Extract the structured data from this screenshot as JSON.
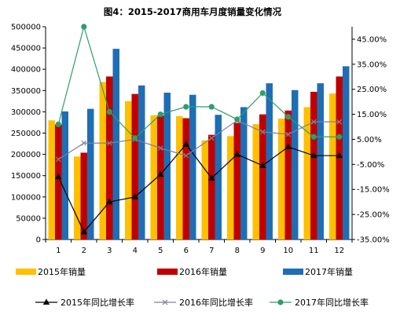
{
  "chart_data": {
    "type": "bar",
    "title": "图4：2015-2017商用车月度销量变化情况",
    "categories": [
      "1",
      "2",
      "3",
      "4",
      "5",
      "6",
      "7",
      "8",
      "9",
      "10",
      "11",
      "12"
    ],
    "series": [
      {
        "name": "2015年销量",
        "kind": "bar",
        "color": "#FFC000",
        "values": [
          280000,
          195000,
          370000,
          325000,
          292000,
          290000,
          233000,
          243000,
          271000,
          284000,
          311000,
          343000
        ]
      },
      {
        "name": "2016年销量",
        "kind": "bar",
        "color": "#C00000",
        "values": [
          270000,
          204000,
          383000,
          342000,
          291000,
          285000,
          246000,
          274000,
          294000,
          303000,
          347000,
          383000
        ]
      },
      {
        "name": "2017年销量",
        "kind": "bar",
        "color": "#1F6EB4",
        "values": [
          301000,
          307000,
          448000,
          362000,
          345000,
          340000,
          293000,
          311000,
          367000,
          351000,
          367000,
          407000
        ]
      },
      {
        "name": "2015年同比增长率",
        "kind": "line",
        "color": "#000000",
        "marker": "triangle",
        "values": [
          -10,
          -32,
          -20,
          -18,
          -9,
          3,
          -10.5,
          -1,
          -5.5,
          2,
          -1.5,
          -1.5
        ]
      },
      {
        "name": "2016年同比增长率",
        "kind": "line",
        "color": "#7F7F9F",
        "marker": "x",
        "values": [
          -3,
          3.5,
          3.5,
          5,
          1.5,
          -1.5,
          5.5,
          12.5,
          8,
          7,
          12,
          12
        ]
      },
      {
        "name": "2017年同比增长率",
        "kind": "line",
        "color": "#2E9E6A",
        "marker": "circle",
        "values": [
          11,
          50,
          16,
          5.5,
          15,
          18,
          18,
          13,
          23.5,
          14,
          6,
          6
        ]
      }
    ],
    "y_left": {
      "min": 0,
      "max": 500000,
      "step": 50000,
      "ticks": [
        "0",
        "50000",
        "100000",
        "150000",
        "200000",
        "250000",
        "300000",
        "350000",
        "400000",
        "450000",
        "500000"
      ]
    },
    "y_right": {
      "min": -35,
      "max": 50,
      "ticks_values": [
        -35,
        -25,
        -15,
        -5,
        5,
        15,
        25,
        35,
        45
      ],
      "ticks": [
        "-35.00%",
        "-25.00%",
        "-15.00%",
        "-5.00%",
        "5.00%",
        "15.00%",
        "25.00%",
        "35.00%",
        "45.00%"
      ]
    },
    "grid": false,
    "legend_position": "bottom"
  }
}
